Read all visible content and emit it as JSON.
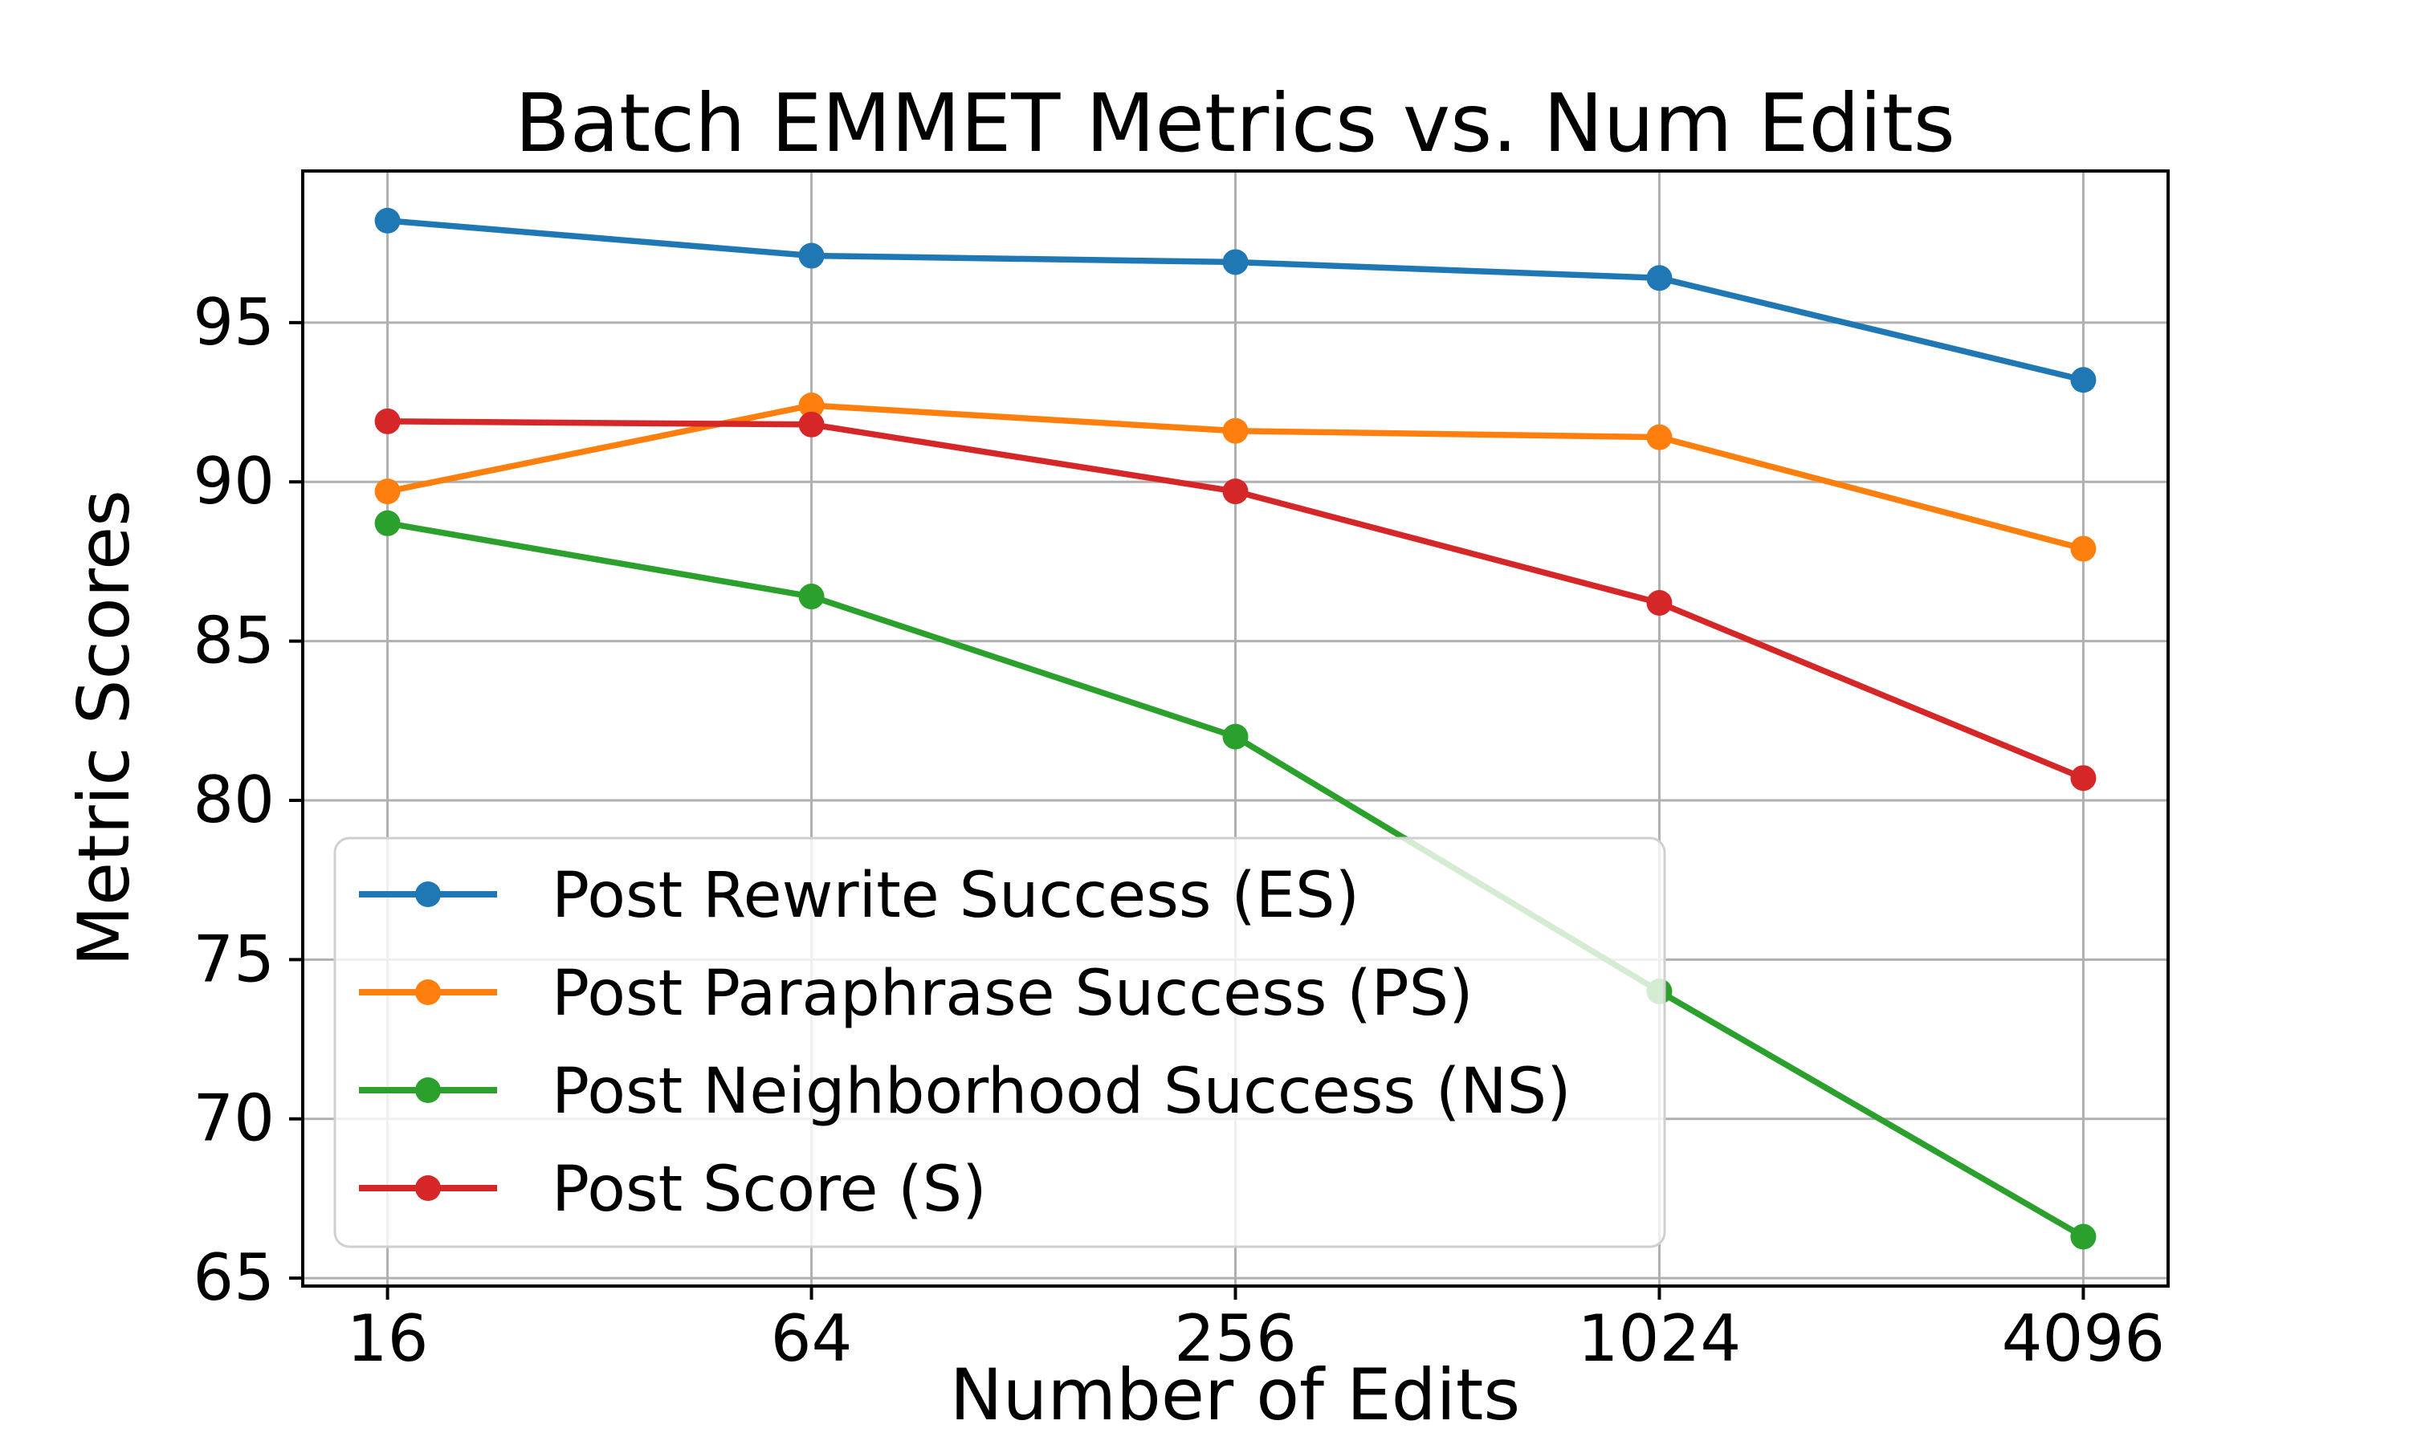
{
  "figure": {
    "background": "#ffffff",
    "grid_color": "#b0b0b0",
    "spine_color": "#000000",
    "legend_border_color": "#d0d0d0"
  },
  "chart_data": {
    "type": "line",
    "title": "Batch EMMET Metrics vs. Num Edits",
    "xlabel": "Number of Edits",
    "ylabel": "Metric Scores",
    "x": [
      16,
      64,
      256,
      1024,
      4096
    ],
    "xticklabels": [
      "16",
      "64",
      "256",
      "1024",
      "4096"
    ],
    "yticks": [
      65,
      70,
      75,
      80,
      85,
      90,
      95
    ],
    "xscale": "log2",
    "xlim_log2": [
      3.6,
      12.4
    ],
    "ylim": [
      64.75,
      99.76
    ],
    "grid": true,
    "legend_position": "lower-left",
    "series": [
      {
        "name": "Post Rewrite Success (ES)",
        "color": "#1f77b4",
        "values": [
          98.2,
          97.1,
          96.9,
          96.4,
          93.2
        ]
      },
      {
        "name": "Post Paraphrase Success (PS)",
        "color": "#ff7f0e",
        "values": [
          89.7,
          92.4,
          91.6,
          91.4,
          87.9
        ]
      },
      {
        "name": "Post Neighborhood Success (NS)",
        "color": "#2ca02c",
        "values": [
          88.7,
          86.4,
          82.0,
          74.0,
          66.3
        ]
      },
      {
        "name": "Post Score (S)",
        "color": "#d62728",
        "values": [
          91.9,
          91.8,
          89.7,
          86.2,
          80.7
        ]
      }
    ]
  }
}
